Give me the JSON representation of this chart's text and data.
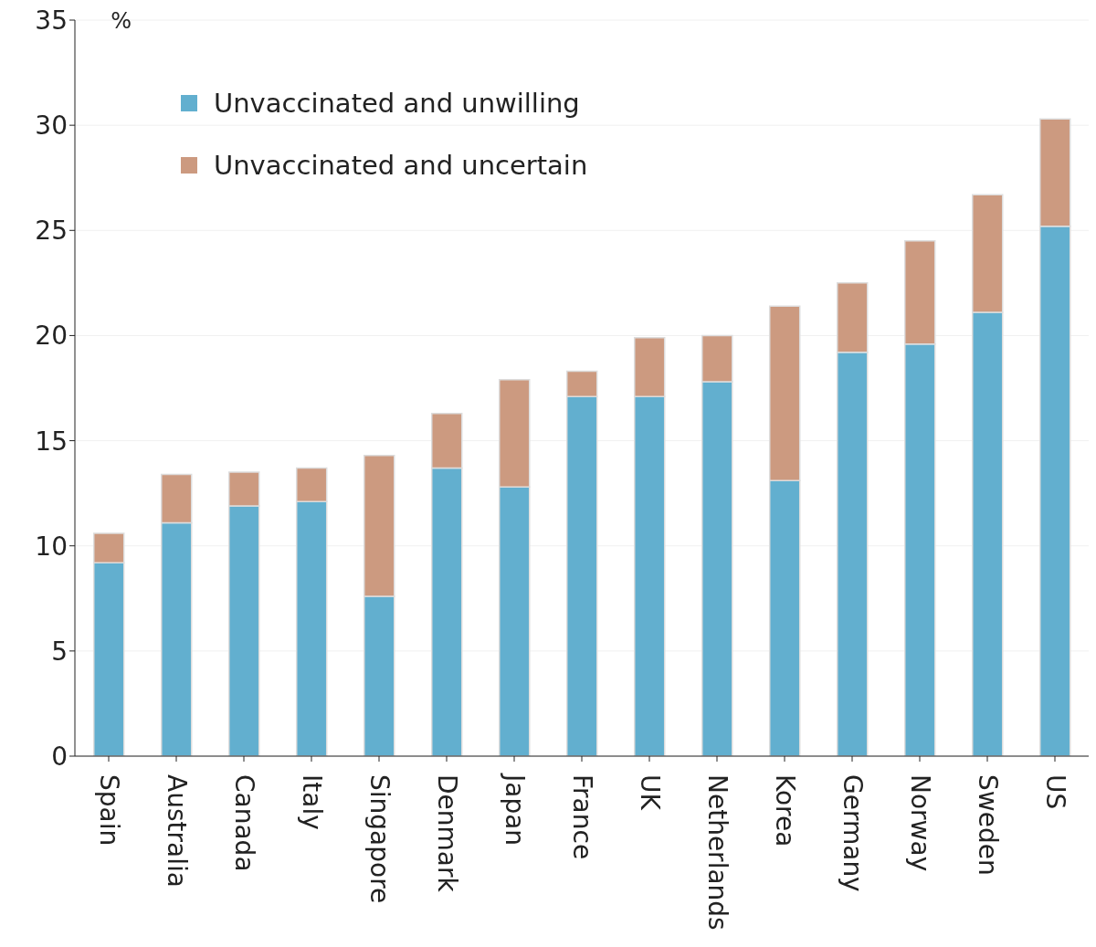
{
  "chart_data": {
    "type": "bar",
    "stacked": true,
    "ylabel": "%",
    "categories": [
      "Spain",
      "Australia",
      "Canada",
      "Italy",
      "Singapore",
      "Denmark",
      "Japan",
      "France",
      "UK",
      "Netherlands",
      "Korea",
      "Germany",
      "Norway",
      "Sweden",
      "US"
    ],
    "series": [
      {
        "name": "Unvaccinated and unwilling",
        "color": "#62afcf",
        "values": [
          9.2,
          11.1,
          11.9,
          12.1,
          7.6,
          13.7,
          12.8,
          17.1,
          17.1,
          17.8,
          13.1,
          19.2,
          19.6,
          21.1,
          25.2
        ]
      },
      {
        "name": "Unvaccinated and uncertain",
        "color": "#cc9a80",
        "values": [
          1.4,
          2.3,
          1.6,
          1.6,
          6.7,
          2.6,
          5.1,
          1.2,
          2.8,
          2.2,
          8.3,
          3.3,
          4.9,
          5.6,
          5.1
        ]
      }
    ],
    "ylim": [
      0,
      35
    ],
    "yticks": [
      0,
      5,
      10,
      15,
      20,
      25,
      30,
      35
    ],
    "grid": "y",
    "legend": "top left"
  }
}
